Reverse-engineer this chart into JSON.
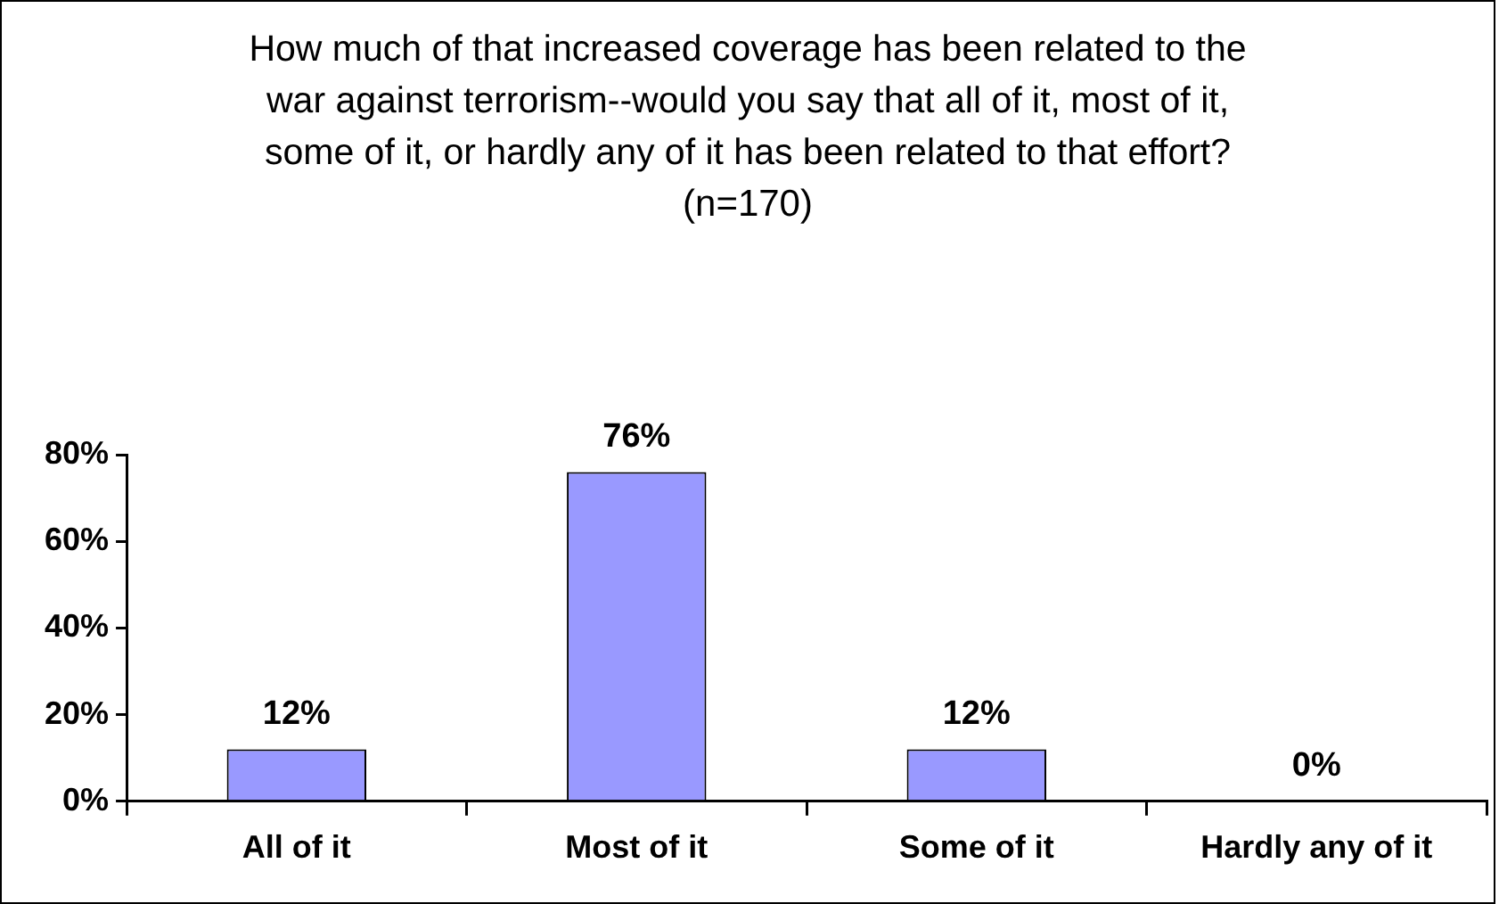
{
  "chart_data": {
    "type": "bar",
    "title": "How much of that increased coverage has been related to the war against terrorism--would you say that all of it, most of it, some of it, or hardly any of it has been related to that effort?",
    "subtitle": "(n=170)",
    "categories": [
      "All of it",
      "Most of it",
      "Some of it",
      "Hardly any of it"
    ],
    "values": [
      12,
      76,
      12,
      0
    ],
    "value_labels": [
      "12%",
      "76%",
      "12%",
      "0%"
    ],
    "color": "#9999ff",
    "ylim": [
      0,
      80
    ],
    "yticks": [
      {
        "value": 0,
        "label": "0%"
      },
      {
        "value": 20,
        "label": "20%"
      },
      {
        "value": 40,
        "label": "40%"
      },
      {
        "value": 60,
        "label": "60%"
      },
      {
        "value": 80,
        "label": "80%"
      }
    ],
    "grid": false,
    "legend": false
  }
}
